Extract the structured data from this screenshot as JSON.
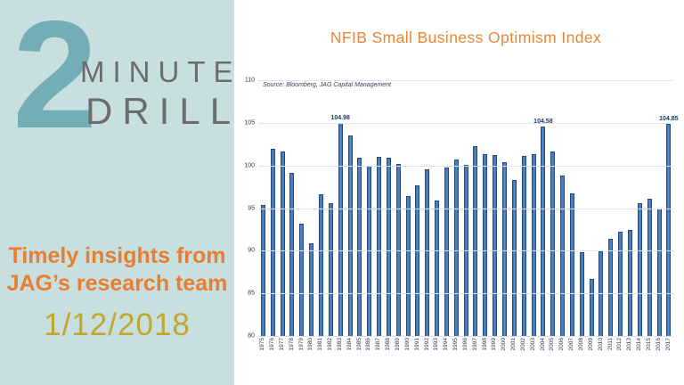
{
  "left_panel": {
    "logo_number": "2",
    "logo_line1": "MINUTE",
    "logo_line2": "DRILL",
    "tagline_line1": "Timely insights from",
    "tagline_line2": "JAG’s research team",
    "date": "1/12/2018",
    "colors": {
      "background": "#c8dfe0",
      "number": "#73aeb6",
      "logo_text": "#6b6c6e",
      "tagline": "#e87e2e",
      "date": "#c2a72f"
    }
  },
  "chart": {
    "title": "NFIB Small Business Optimism Index",
    "source_note": "Source: Bloomberg, JAG Capital Management",
    "colors": {
      "title": "#e98634",
      "bar_fill": "#4a7ebc",
      "bar_border": "#24477c",
      "gridline": "#dde4ec",
      "axis_text": "#2f3a4f"
    }
  },
  "chart_data": {
    "type": "bar",
    "title": "NFIB Small Business Optimism Index",
    "source": "Source: Bloomberg, JAG Capital Management",
    "categories": [
      1975,
      1976,
      1977,
      1978,
      1979,
      1980,
      1981,
      1982,
      1983,
      1984,
      1985,
      1986,
      1987,
      1988,
      1989,
      1990,
      1991,
      1992,
      1993,
      1994,
      1995,
      1996,
      1997,
      1998,
      1999,
      2000,
      2001,
      2002,
      2003,
      2004,
      2005,
      2006,
      2007,
      2008,
      2009,
      2010,
      2011,
      2012,
      2013,
      2014,
      2015,
      2016,
      2017
    ],
    "values": [
      95.4,
      102.0,
      101.6,
      99.1,
      93.2,
      90.9,
      96.6,
      95.6,
      104.98,
      103.5,
      100.9,
      100.0,
      101.0,
      100.9,
      100.2,
      96.4,
      97.7,
      99.5,
      95.9,
      99.8,
      100.7,
      100.1,
      102.3,
      101.3,
      101.2,
      100.4,
      98.3,
      101.1,
      101.3,
      104.58,
      101.6,
      98.8,
      96.7,
      89.8,
      86.7,
      89.9,
      91.4,
      92.2,
      92.4,
      95.6,
      96.1,
      95.0,
      104.85
    ],
    "annotations": [
      {
        "year": 1983,
        "label": "104.98"
      },
      {
        "year": 2004,
        "label": "104.58"
      },
      {
        "year": 2017,
        "label": "104.85"
      }
    ],
    "xlabel": "",
    "ylabel": "",
    "ylim": [
      80,
      110
    ],
    "yticks": [
      80,
      85,
      90,
      95,
      100,
      105,
      110
    ],
    "grid": true,
    "legend_position": "none"
  }
}
